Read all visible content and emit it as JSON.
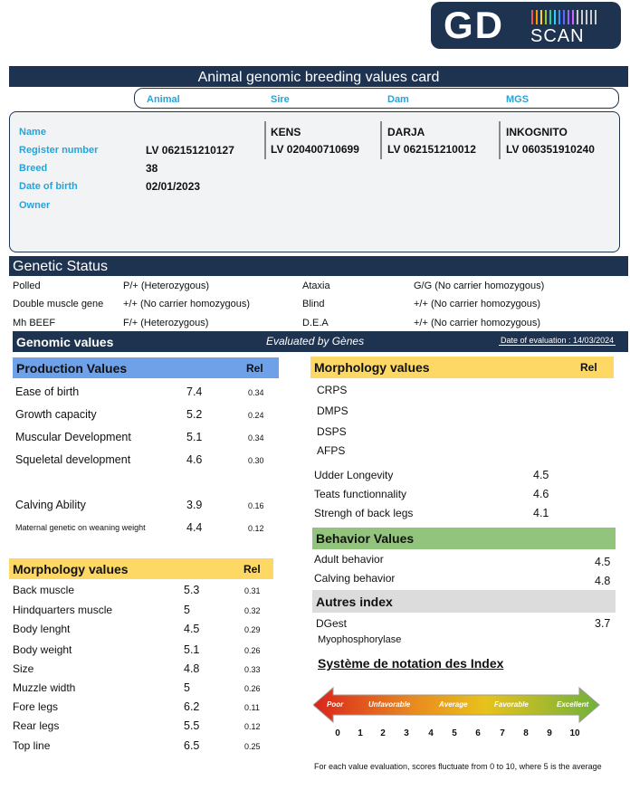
{
  "logo": {
    "main": "GD",
    "sub": "SCAN"
  },
  "title": "Animal genomic breeding values card",
  "columns": [
    "Animal",
    "Sire",
    "Dam",
    "MGS"
  ],
  "identity": {
    "labels": [
      "Name",
      "Register number",
      "Breed",
      "Date of birth",
      "Owner"
    ],
    "animal": {
      "register": "LV 062151210127",
      "breed": "38",
      "birth": "02/01/2023"
    },
    "sire": {
      "name": "KENS",
      "register": "LV 020400710699"
    },
    "dam": {
      "name": "DARJA",
      "register": "LV 062151210012"
    },
    "mgs": {
      "name": "INKOGNITO",
      "register": "LV 060351910240"
    }
  },
  "genetic_status": {
    "title": "Genetic Status",
    "rows": [
      [
        "Polled",
        "P/+ (Heterozygous)",
        "Ataxia",
        "G/G (No carrier homozygous)"
      ],
      [
        "Double muscle gene",
        "+/+ (No carrier homozygous)",
        "Blind",
        "+/+ (No carrier homozygous)"
      ],
      [
        "Mh BEEF",
        "F/+ (Heterozygous)",
        "D.E.A",
        "+/+ (No carrier homozygous)"
      ]
    ]
  },
  "genomic": {
    "title": "Genomic values",
    "evaluated": "Evaluated by Gènes",
    "date": "Date of evaluation : 14/03/2024"
  },
  "production": {
    "title": "Production Values",
    "rel": "Rel",
    "rows": [
      [
        "Ease of birth",
        "7.4",
        "0.34"
      ],
      [
        "Growth capacity",
        "5.2",
        "0.24"
      ],
      [
        "Muscular Development",
        "5.1",
        "0.34"
      ],
      [
        "Squeletal development",
        "4.6",
        "0.30"
      ],
      [
        "Calving Ability",
        "3.9",
        "0.16"
      ],
      [
        "Maternal genetic on weaning weight",
        "4.4",
        "0.12"
      ]
    ]
  },
  "morphology_left": {
    "title": "Morphology values",
    "rel": "Rel",
    "rows": [
      [
        "Back muscle",
        "5.3",
        "0.31"
      ],
      [
        "Hindquarters muscle",
        "5",
        "0.32"
      ],
      [
        "Body lenght",
        "4.5",
        "0.29"
      ],
      [
        "Body weight",
        "5.1",
        "0.26"
      ],
      [
        "Size",
        "4.8",
        "0.33"
      ],
      [
        "Muzzle width",
        "5",
        "0.26"
      ],
      [
        "Fore legs",
        "6.2",
        "0.11"
      ],
      [
        "Rear legs",
        "5.5",
        "0.12"
      ],
      [
        "Top line",
        "6.5",
        "0.25"
      ]
    ]
  },
  "morphology_right": {
    "title": "Morphology values",
    "rel": "Rel",
    "codes": [
      "CRPS",
      "DMPS",
      "DSPS",
      "AFPS"
    ],
    "rows": [
      [
        "Udder Longevity",
        "4.5"
      ],
      [
        "Teats functionnality",
        "4.6"
      ],
      [
        "Strengh of back legs",
        "4.1"
      ]
    ]
  },
  "behavior": {
    "title": "Behavior Values",
    "rows": [
      [
        "Adult behavior",
        "4.5"
      ],
      [
        "Calving behavior",
        "4.8"
      ]
    ]
  },
  "autres": {
    "title": "Autres index",
    "rows": [
      [
        "DGest",
        "3.7"
      ]
    ],
    "extra": "Myophosphorylase"
  },
  "scale": {
    "title": "Système de notation des Index",
    "levels": [
      "Poor",
      "Unfavorable",
      "Average",
      "Favorable",
      "Excellent"
    ],
    "numbers": [
      "0",
      "1",
      "2",
      "3",
      "4",
      "5",
      "6",
      "7",
      "8",
      "9",
      "10"
    ],
    "note": "For each value evaluation, scores fluctuate from 0 to 10, where 5 is the average"
  }
}
